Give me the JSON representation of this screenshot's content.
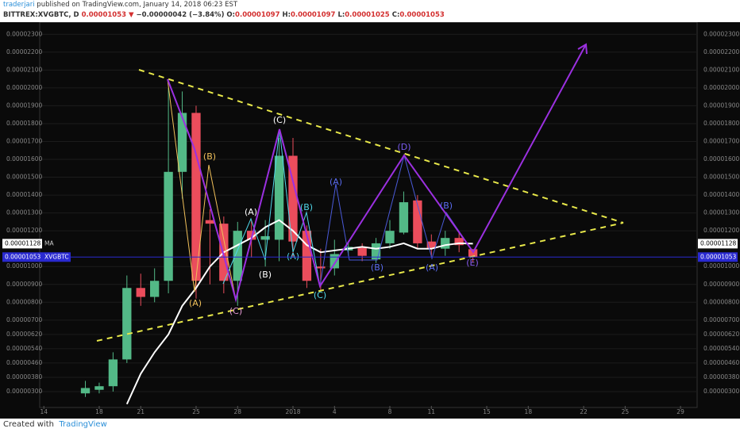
{
  "header": {
    "author": "traderjari",
    "published": "published on TradingView.com, January 14, 2018 06:23 EST",
    "symbol": "BITTREX:XVGBTC, D",
    "arrow": "▼",
    "change": "−0.00000042 (−3.84%)",
    "o_label": "O:",
    "h_label": "H:",
    "l_label": "L:",
    "c_label": "C:"
  },
  "footer": {
    "created": "Created with",
    "brand": "TradingView"
  },
  "chart_data": {
    "type": "candlestick",
    "x": [
      3,
      4,
      5,
      6,
      7,
      8,
      9,
      10,
      11,
      12,
      13,
      14,
      15,
      16,
      17,
      18,
      19,
      20,
      21,
      22,
      23,
      24,
      25,
      26,
      27,
      28,
      29,
      30,
      31
    ],
    "open": [
      2.9e-06,
      3.1e-06,
      3.3e-06,
      4.8e-06,
      8.8e-06,
      8.3e-06,
      9.2e-06,
      1.53e-05,
      1.86e-05,
      1.26e-05,
      1.24e-05,
      9.2e-06,
      1.2e-05,
      1.15e-05,
      1.15e-05,
      1.62e-05,
      1.2e-05,
      1e-05,
      9.9e-06,
      1.09e-05,
      1.11e-05,
      1.04e-05,
      1.13e-05,
      1.19e-05,
      1.37e-05,
      1.14e-05,
      1.1e-05,
      1.16e-05,
      1.097e-05
    ],
    "high": [
      3.6e-06,
      3.5e-06,
      5.2e-06,
      9.5e-06,
      9.6e-06,
      9.9e-06,
      2e-05,
      1.98e-05,
      1.9e-05,
      1.32e-05,
      1.28e-05,
      1.25e-05,
      1.26e-05,
      1.26e-05,
      1.72e-05,
      1.72e-05,
      1.23e-05,
      1.1e-05,
      1.15e-05,
      1.14e-05,
      1.13e-05,
      1.16e-05,
      1.26e-05,
      1.42e-05,
      1.4e-05,
      1.18e-05,
      1.2e-05,
      1.19e-05,
      1.097e-05
    ],
    "low": [
      2.7e-06,
      2.9e-06,
      3e-06,
      4.6e-06,
      7.8e-06,
      8e-06,
      8.5e-06,
      1.38e-05,
      8.2e-06,
      9e-06,
      8.5e-06,
      7.8e-06,
      1.05e-05,
      1e-05,
      1.03e-05,
      1.05e-05,
      8.8e-06,
      8.6e-06,
      9.5e-06,
      1.06e-05,
      1.03e-05,
      1.02e-05,
      1.1e-05,
      1.18e-05,
      1.1e-05,
      1.05e-05,
      1.06e-05,
      1.08e-05,
      1.025e-05
    ],
    "close": [
      3.2e-06,
      3.3e-06,
      4.8e-06,
      8.8e-06,
      8.3e-06,
      9.2e-06,
      1.53e-05,
      1.86e-05,
      9.2e-06,
      1.24e-05,
      9.2e-06,
      1.2e-05,
      1.15e-05,
      1.17e-05,
      1.62e-05,
      1.14e-05,
      9.2e-06,
      9.9e-06,
      1.07e-05,
      1.11e-05,
      1.06e-05,
      1.13e-05,
      1.2e-05,
      1.36e-05,
      1.13e-05,
      1.1e-05,
      1.16e-05,
      1.12e-05,
      1.053e-05
    ],
    "ma": [
      null,
      null,
      null,
      2.3e-06,
      4e-06,
      5.2e-06,
      6.2e-06,
      7.8e-06,
      8.8e-06,
      1e-05,
      1.08e-05,
      1.12e-05,
      1.16e-05,
      1.22e-05,
      1.26e-05,
      1.2e-05,
      1.12e-05,
      1.08e-05,
      1.09e-05,
      1.1e-05,
      1.11e-05,
      1.1e-05,
      1.11e-05,
      1.13e-05,
      1.1e-05,
      1.1e-05,
      1.12e-05,
      1.13e-05,
      1.128e-05
    ],
    "ma_name": "MA",
    "symbol_tag": "XVGBTC",
    "up_color": "#53b987",
    "down_color": "#eb4d5c",
    "ma_color": "#ffffff",
    "ylim": [
      2.2e-06,
      2.35e-05
    ],
    "yticks": [
      {
        "value": 2.3e-05,
        "label": "0.00002300"
      },
      {
        "value": 2.2e-05,
        "label": "0.00002200"
      },
      {
        "value": 2.1e-05,
        "label": "0.00002100"
      },
      {
        "value": 2e-05,
        "label": "0.00002000"
      },
      {
        "value": 1.9e-05,
        "label": "0.00001900"
      },
      {
        "value": 1.8e-05,
        "label": "0.00001800"
      },
      {
        "value": 1.7e-05,
        "label": "0.00001700"
      },
      {
        "value": 1.6e-05,
        "label": "0.00001600"
      },
      {
        "value": 1.5e-05,
        "label": "0.00001500"
      },
      {
        "value": 1.4e-05,
        "label": "0.00001400"
      },
      {
        "value": 1.3e-05,
        "label": "0.00001300"
      },
      {
        "value": 1.2e-05,
        "label": "0.00001200"
      },
      {
        "value": 1e-05,
        "label": "0.00001000"
      },
      {
        "value": 9e-06,
        "label": "0.00000900"
      },
      {
        "value": 8e-06,
        "label": "0.00000800"
      },
      {
        "value": 7e-06,
        "label": "0.00000700"
      },
      {
        "value": 6.2e-06,
        "label": "0.00000620"
      },
      {
        "value": 5.4e-06,
        "label": "0.00000540"
      },
      {
        "value": 4.6e-06,
        "label": "0.00000460"
      },
      {
        "value": 3.8e-06,
        "label": "0.00000380"
      },
      {
        "value": 3e-06,
        "label": "0.00000300"
      }
    ],
    "xlim": [
      -0.3,
      47.2
    ],
    "xticks": [
      {
        "value": 0,
        "label": "14"
      },
      {
        "value": 4,
        "label": "18"
      },
      {
        "value": 7,
        "label": "21"
      },
      {
        "value": 11,
        "label": "25"
      },
      {
        "value": 14,
        "label": "28"
      },
      {
        "value": 18,
        "label": "2018"
      },
      {
        "value": 21,
        "label": "4"
      },
      {
        "value": 25,
        "label": "8"
      },
      {
        "value": 28,
        "label": "11"
      },
      {
        "value": 32,
        "label": "15"
      },
      {
        "value": 35,
        "label": "18"
      },
      {
        "value": 39,
        "label": "22"
      },
      {
        "value": 42,
        "label": "25"
      },
      {
        "value": 46,
        "label": "29"
      }
    ],
    "annotations": [
      {
        "text": "(A)",
        "color": "#f0c05a"
      },
      {
        "text": "(B)",
        "color": "#f0c05a"
      },
      {
        "text": "(C)",
        "color": "#e79bd6"
      },
      {
        "text": "(A)",
        "color": "#ffffff"
      },
      {
        "text": "(B)",
        "color": "#ffffff"
      },
      {
        "text": "(C)",
        "color": "#ffffff"
      },
      {
        "text": "(A)",
        "color": "#4fd6e8"
      },
      {
        "text": "(B)",
        "color": "#4fd6e8"
      },
      {
        "text": "(C)",
        "color": "#4fd6e8"
      },
      {
        "text": "(A)",
        "color": "#5a6cf0"
      },
      {
        "text": "(B)",
        "color": "#5a6cf0"
      },
      {
        "text": "(D)",
        "color": "#7a5cf0"
      },
      {
        "text": "(A)",
        "color": "#5a6cf0"
      },
      {
        "text": "(B)",
        "color": "#5a6cf0"
      },
      {
        "text": "(E)",
        "color": "#8a5cf0"
      }
    ]
  }
}
